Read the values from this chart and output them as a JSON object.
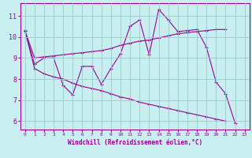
{
  "xlabel": "Windchill (Refroidissement éolien,°C)",
  "background_color": "#c8eef0",
  "line_color": "#990099",
  "grid_color": "#99cccc",
  "xlim": [
    -0.5,
    23.5
  ],
  "ylim": [
    5.6,
    11.6
  ],
  "xticks": [
    0,
    1,
    2,
    3,
    4,
    5,
    6,
    7,
    8,
    9,
    10,
    11,
    12,
    13,
    14,
    15,
    16,
    17,
    18,
    19,
    20,
    21,
    22,
    23
  ],
  "yticks": [
    6,
    7,
    8,
    9,
    10,
    11
  ],
  "line1_x": [
    0,
    1,
    2,
    3,
    4,
    5,
    6,
    7,
    8,
    9,
    10,
    11,
    12,
    13,
    14,
    15,
    16,
    17,
    18,
    19,
    20,
    21,
    22
  ],
  "line1_y": [
    10.3,
    8.7,
    9.0,
    9.0,
    7.7,
    7.25,
    8.6,
    8.6,
    7.75,
    8.5,
    9.2,
    10.5,
    10.8,
    9.15,
    11.3,
    10.8,
    10.25,
    10.3,
    10.35,
    9.5,
    7.85,
    7.3,
    5.9
  ],
  "line2_x": [
    0,
    1,
    2,
    3,
    4,
    5,
    6,
    7,
    8,
    9,
    10,
    11,
    12,
    13,
    14,
    15,
    16,
    17,
    18,
    19,
    20,
    21
  ],
  "line2_y": [
    10.3,
    9.0,
    9.05,
    9.1,
    9.15,
    9.2,
    9.25,
    9.3,
    9.35,
    9.45,
    9.6,
    9.7,
    9.8,
    9.85,
    9.95,
    10.05,
    10.15,
    10.2,
    10.25,
    10.3,
    10.35,
    10.35
  ],
  "line3_x": [
    0,
    1,
    2,
    3,
    4,
    5,
    6,
    7,
    8,
    9,
    10,
    11,
    12,
    13,
    14,
    15,
    16,
    17,
    18,
    19,
    20,
    21
  ],
  "line3_y": [
    10.3,
    8.5,
    8.25,
    8.1,
    8.0,
    7.8,
    7.65,
    7.55,
    7.45,
    7.3,
    7.15,
    7.05,
    6.9,
    6.8,
    6.7,
    6.6,
    6.5,
    6.4,
    6.3,
    6.2,
    6.1,
    6.0
  ]
}
